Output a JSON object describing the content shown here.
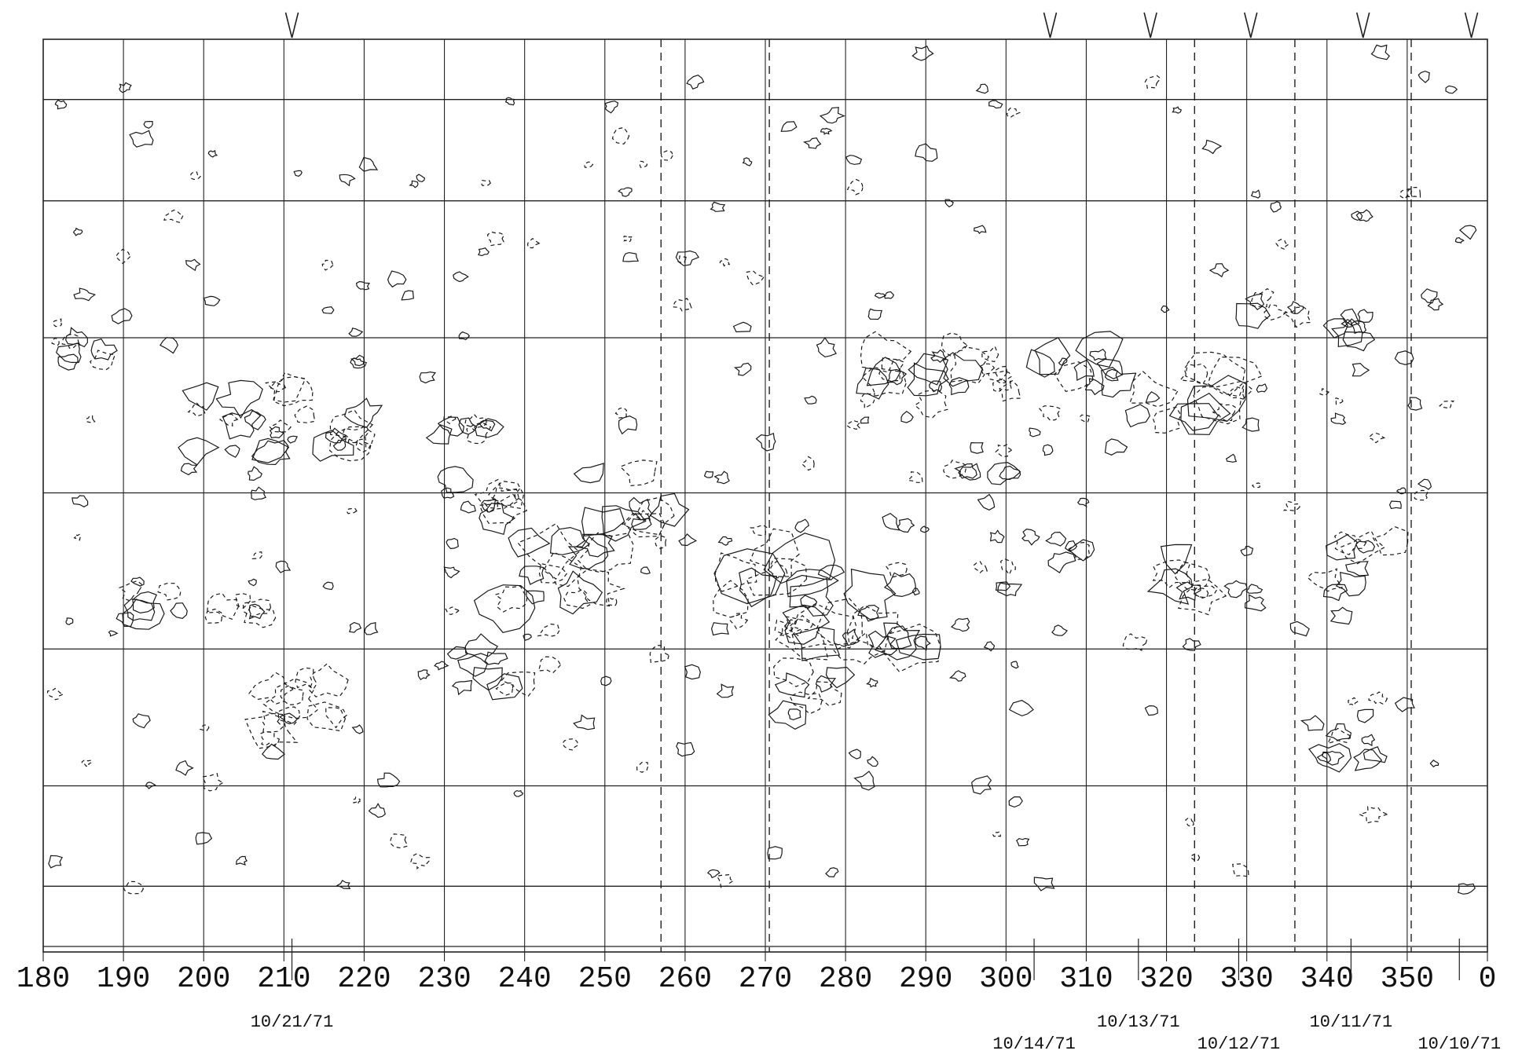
{
  "chart_data": {
    "type": "heatmap",
    "title": "",
    "xlabel": "",
    "ylabel": "",
    "x_direction": "increasing",
    "xlim": [
      180,
      360
    ],
    "x_ticks": [
      "180",
      "190",
      "200",
      "210",
      "220",
      "230",
      "240",
      "250",
      "260",
      "270",
      "280",
      "290",
      "300",
      "310",
      "320",
      "330",
      "340",
      "350",
      "0"
    ],
    "x_tick_values": [
      180,
      190,
      200,
      210,
      220,
      230,
      240,
      250,
      260,
      270,
      280,
      290,
      300,
      310,
      320,
      330,
      340,
      350,
      360
    ],
    "row_boundaries_fraction": [
      0,
      0.066,
      0.177,
      0.327,
      0.497,
      0.668,
      0.818,
      0.928,
      0.994,
      1.0
    ],
    "grid": true,
    "dates": [
      {
        "label": "10/21/71",
        "longitude": 211
      },
      {
        "label": "10/14/71",
        "longitude": 303.5
      },
      {
        "label": "10/13/71",
        "longitude": 316.5
      },
      {
        "label": "10/12/71",
        "longitude": 329
      },
      {
        "label": "10/11/71",
        "longitude": 343
      },
      {
        "label": "10/10/71",
        "longitude": 356.5
      }
    ],
    "top_markers_longitude": [
      211,
      305.5,
      318,
      330.5,
      344.5,
      358
    ],
    "dashed_verticals_longitude": [
      257,
      270.5,
      323.5,
      336,
      350.5
    ],
    "legend": "none",
    "contour_styles": [
      "solid",
      "dashed"
    ]
  }
}
